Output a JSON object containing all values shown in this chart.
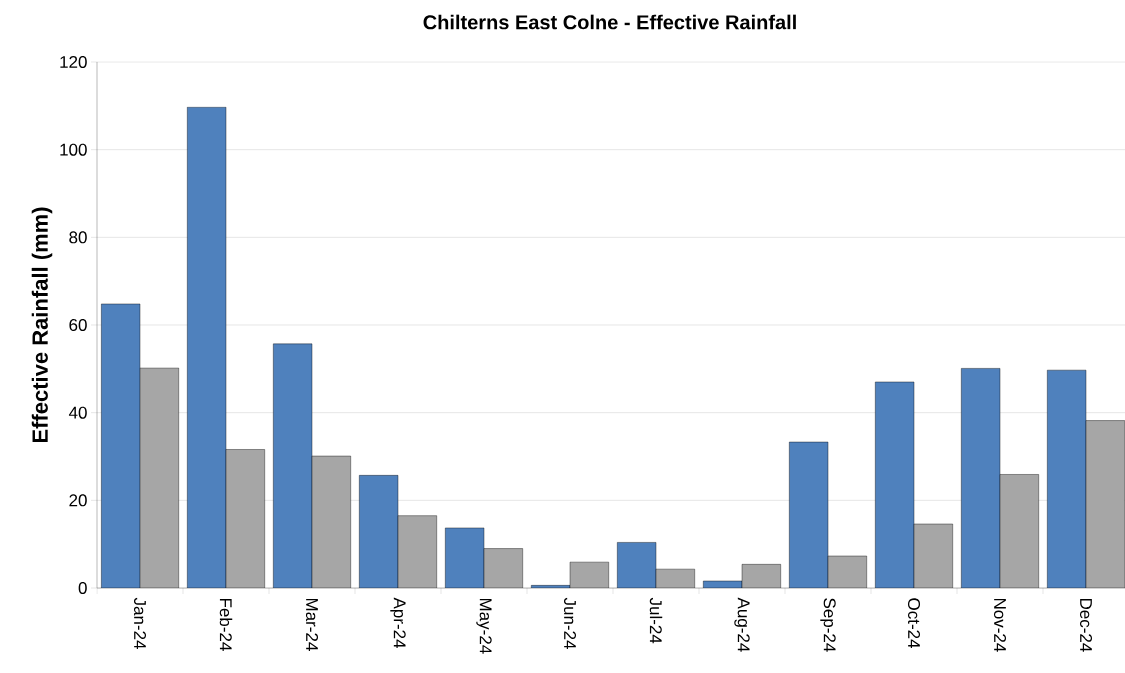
{
  "chart_data": {
    "type": "bar",
    "title": "Chilterns East Colne - Effective Rainfall",
    "ylabel": "Effective Rainfall (mm)",
    "categories": [
      "Jan-24",
      "Feb-24",
      "Mar-24",
      "Apr-24",
      "May-24",
      "Jun-24",
      "Jul-24",
      "Aug-24",
      "Sep-24",
      "Oct-24",
      "Nov-24",
      "Dec-24"
    ],
    "series": [
      {
        "color": "#4f81bd",
        "values": [
          64.8,
          109.7,
          55.7,
          25.7,
          13.7,
          0.6,
          10.4,
          1.6,
          33.3,
          47.0,
          50.1,
          49.7
        ]
      },
      {
        "color": "#a6a6a6",
        "values": [
          50.2,
          31.6,
          30.1,
          16.5,
          9.0,
          5.9,
          4.3,
          5.4,
          7.3,
          14.6,
          25.9,
          38.2
        ]
      }
    ],
    "ylim": [
      0,
      120
    ],
    "yticks": [
      0,
      20,
      40,
      60,
      80,
      100,
      120
    ],
    "grid": "y"
  }
}
